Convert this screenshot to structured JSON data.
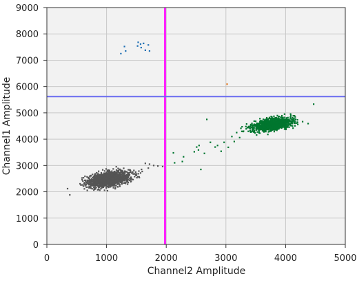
{
  "chart_data": {
    "type": "scatter",
    "xlabel": "Channel2 Amplitude",
    "ylabel": "Channel1 Amplitude",
    "xlim": [
      0,
      5000
    ],
    "ylim": [
      0,
      9000
    ],
    "xticks": [
      "0",
      "1000",
      "2000",
      "3000",
      "4000",
      "5000"
    ],
    "yticks": [
      "0",
      "1000",
      "2000",
      "3000",
      "4000",
      "5000",
      "6000",
      "7000",
      "8000",
      "9000"
    ],
    "grid": true,
    "colors": {
      "plot_bg": "#f2f2f2",
      "grid": "#c8c8c8",
      "gray_cluster": "#555555",
      "green_cluster": "#00762f",
      "blue_cluster": "#1f6fb4",
      "orange_point": "#e57a22",
      "threshold_vertical": "#ff22ff",
      "threshold_horizontal": "#6a6cf0"
    },
    "thresholds": {
      "x": 1980,
      "y": 5620
    },
    "clusters": [
      {
        "color": "gray_cluster",
        "center": [
          1050,
          2480
        ],
        "spread": [
          170,
          130
        ],
        "tilt": 0.35,
        "count": 1700
      },
      {
        "color": "green_cluster",
        "center": [
          3780,
          4560
        ],
        "spread": [
          160,
          110
        ],
        "tilt": 0.3,
        "count": 1300
      }
    ],
    "points": [
      {
        "color": "blue_cluster",
        "values": [
          [
            1300,
            7520
          ],
          [
            1240,
            7250
          ],
          [
            1320,
            7350
          ],
          [
            1530,
            7680
          ],
          [
            1570,
            7610
          ],
          [
            1520,
            7540
          ],
          [
            1620,
            7640
          ],
          [
            1580,
            7480
          ],
          [
            1700,
            7580
          ],
          [
            1650,
            7380
          ],
          [
            1720,
            7350
          ]
        ]
      },
      {
        "color": "orange_point",
        "values": [
          [
            3020,
            6090
          ]
        ]
      },
      {
        "color": "gray_cluster",
        "values": [
          [
            1720,
            3050
          ],
          [
            1790,
            3000
          ],
          [
            1860,
            2980
          ],
          [
            1940,
            2960
          ],
          [
            1650,
            3080
          ],
          [
            1700,
            2900
          ]
        ]
      },
      {
        "color": "green_cluster",
        "values": [
          [
            2120,
            3480
          ],
          [
            2140,
            3100
          ],
          [
            2290,
            3330
          ],
          [
            2270,
            3150
          ],
          [
            2510,
            3700
          ],
          [
            2550,
            3760
          ],
          [
            2470,
            3520
          ],
          [
            2540,
            3590
          ],
          [
            2640,
            3460
          ],
          [
            2680,
            4750
          ],
          [
            2740,
            3880
          ],
          [
            2820,
            3700
          ],
          [
            2860,
            3760
          ],
          [
            2920,
            3540
          ],
          [
            2970,
            3880
          ],
          [
            3040,
            3690
          ],
          [
            3100,
            4100
          ],
          [
            3140,
            3910
          ],
          [
            3180,
            4250
          ],
          [
            3230,
            4060
          ],
          [
            3290,
            4290
          ],
          [
            3340,
            4390
          ],
          [
            2580,
            2850
          ],
          [
            4470,
            5330
          ]
        ]
      }
    ]
  }
}
